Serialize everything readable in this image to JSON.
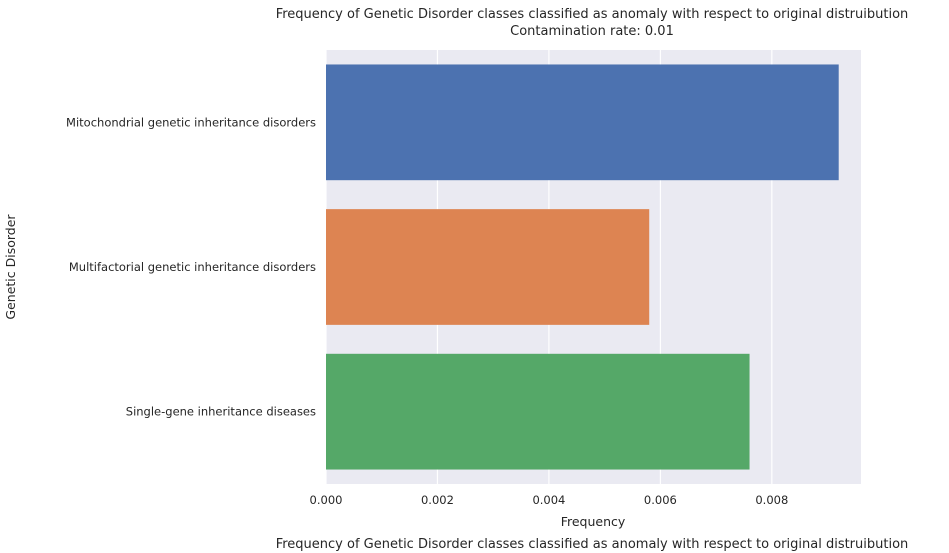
{
  "chart_data": {
    "type": "bar",
    "orientation": "horizontal",
    "title": "Frequency of Genetic Disorder classes classified as anomaly with respect to original distruibution",
    "subtitle": "Contamination rate: 0.01",
    "xlabel": "Frequency",
    "ylabel": "Genetic Disorder",
    "caption": "Frequency of Genetic Disorder classes classified as anomaly with respect to original distruibution",
    "categories": [
      "Mitochondrial genetic inheritance disorders",
      "Multifactorial genetic inheritance disorders",
      "Single-gene inheritance diseases"
    ],
    "values": [
      0.0092,
      0.0058,
      0.0076
    ],
    "colors": [
      "#4c72b0",
      "#dd8452",
      "#55a868"
    ],
    "xlim": [
      0,
      0.0096
    ],
    "xticks": [
      "0.000",
      "0.002",
      "0.004",
      "0.006",
      "0.008"
    ],
    "xtick_values": [
      0,
      0.002,
      0.004,
      0.006,
      0.008
    ],
    "grid": true,
    "background": "#eaeaf2"
  }
}
